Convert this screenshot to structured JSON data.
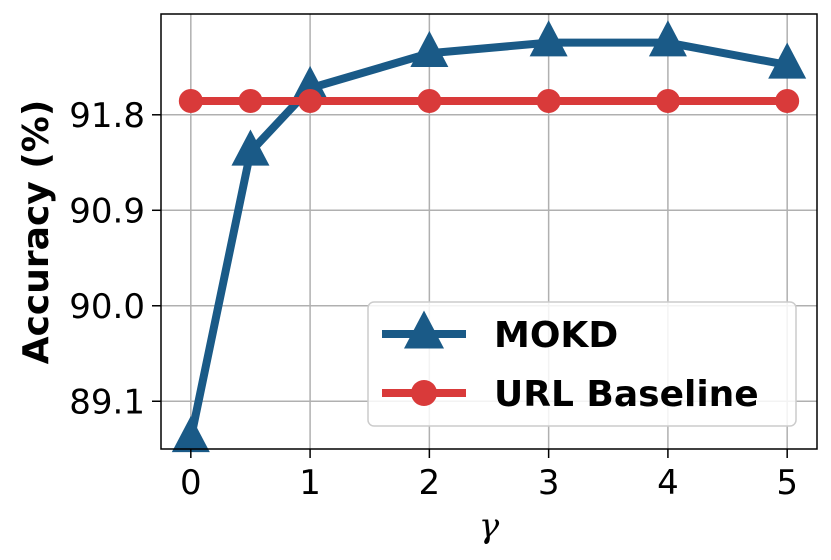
{
  "chart_data": {
    "type": "line",
    "xlabel": "γ",
    "ylabel": "Accuracy (%)",
    "x_ticks": [
      "0",
      "1",
      "2",
      "3",
      "4",
      "5"
    ],
    "y_ticks": [
      "89.1",
      "90.0",
      "90.9",
      "91.8"
    ],
    "xlim": [
      -0.25,
      5.25
    ],
    "ylim": [
      88.65,
      92.75
    ],
    "grid": true,
    "legend_position": "lower-right",
    "series": [
      {
        "name": "MOKD",
        "color": "#1a5a87",
        "marker": "triangle",
        "points": [
          {
            "x": 0,
            "y": 88.75
          },
          {
            "x": 0.5,
            "y": 91.45
          },
          {
            "x": 1,
            "y": 92.05
          },
          {
            "x": 2,
            "y": 92.38
          },
          {
            "x": 3,
            "y": 92.48
          },
          {
            "x": 4,
            "y": 92.48
          },
          {
            "x": 5,
            "y": 92.27
          }
        ]
      },
      {
        "name": "URL Baseline",
        "color": "#d93a3a",
        "marker": "circle",
        "points": [
          {
            "x": 0,
            "y": 91.93
          },
          {
            "x": 0.5,
            "y": 91.93
          },
          {
            "x": 1,
            "y": 91.93
          },
          {
            "x": 2,
            "y": 91.93
          },
          {
            "x": 3,
            "y": 91.93
          },
          {
            "x": 4,
            "y": 91.93
          },
          {
            "x": 5,
            "y": 91.93
          }
        ]
      }
    ]
  }
}
